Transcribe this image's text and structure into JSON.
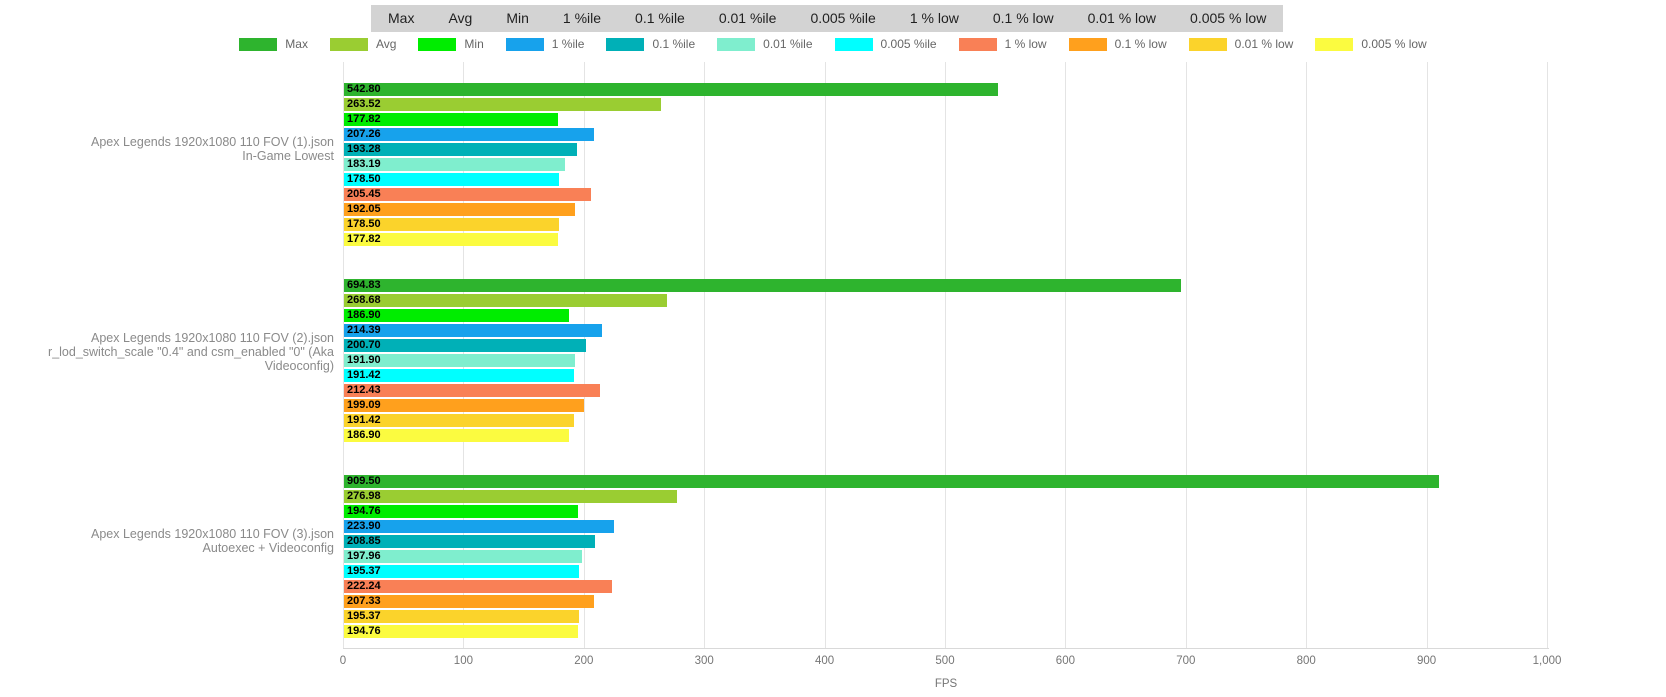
{
  "toolbar": {
    "items": [
      "Max",
      "Avg",
      "Min",
      "1 %ile",
      "0.1 %ile",
      "0.01 %ile",
      "0.005 %ile",
      "1 % low",
      "0.1 % low",
      "0.01 % low",
      "0.005 % low"
    ]
  },
  "legend": {
    "items": [
      {
        "label": "Max",
        "color": "#2eb42e"
      },
      {
        "label": "Avg",
        "color": "#9acd32"
      },
      {
        "label": "Min",
        "color": "#00ed00"
      },
      {
        "label": "1 %ile",
        "color": "#17a2ec"
      },
      {
        "label": "0.1 %ile",
        "color": "#00b0b7"
      },
      {
        "label": "0.01 %ile",
        "color": "#7feece"
      },
      {
        "label": "0.005 %ile",
        "color": "#00ffff"
      },
      {
        "label": "1 % low",
        "color": "#f98056"
      },
      {
        "label": "0.1 % low",
        "color": "#ffa01d"
      },
      {
        "label": "0.01 % low",
        "color": "#fbd32b"
      },
      {
        "label": "0.005 % low",
        "color": "#fbfb40"
      }
    ]
  },
  "chart_data": {
    "type": "bar",
    "orientation": "horizontal",
    "xlabel": "FPS",
    "xlim": [
      0,
      1000
    ],
    "xticks": [
      0,
      100,
      200,
      300,
      400,
      500,
      600,
      700,
      800,
      900,
      1000
    ],
    "xtick_labels": [
      "0",
      "100",
      "200",
      "300",
      "400",
      "500",
      "600",
      "700",
      "800",
      "900",
      "1,000"
    ],
    "grid": true,
    "legend_position": "top",
    "metrics": [
      "Max",
      "Avg",
      "Min",
      "1 %ile",
      "0.1 %ile",
      "0.01 %ile",
      "0.005 %ile",
      "1 % low",
      "0.1 % low",
      "0.01 % low",
      "0.005 % low"
    ],
    "groups": [
      {
        "label_lines": [
          "Apex Legends 1920x1080 110 FOV (1).json",
          "In-Game Lowest"
        ],
        "values": [
          542.8,
          263.52,
          177.82,
          207.26,
          193.28,
          183.19,
          178.5,
          205.45,
          192.05,
          178.5,
          177.82
        ]
      },
      {
        "label_lines": [
          "Apex Legends 1920x1080 110 FOV (2).json",
          "r_lod_switch_scale \"0.4\" and csm_enabled \"0\" (Aka Videoconfig)"
        ],
        "values": [
          694.83,
          268.68,
          186.9,
          214.39,
          200.7,
          191.9,
          191.42,
          212.43,
          199.09,
          191.42,
          186.9
        ]
      },
      {
        "label_lines": [
          "Apex Legends 1920x1080 110 FOV (3).json",
          "Autoexec + Videoconfig"
        ],
        "values": [
          909.5,
          276.98,
          194.76,
          223.9,
          208.85,
          197.96,
          195.37,
          222.24,
          207.33,
          195.37,
          194.76
        ]
      }
    ]
  }
}
